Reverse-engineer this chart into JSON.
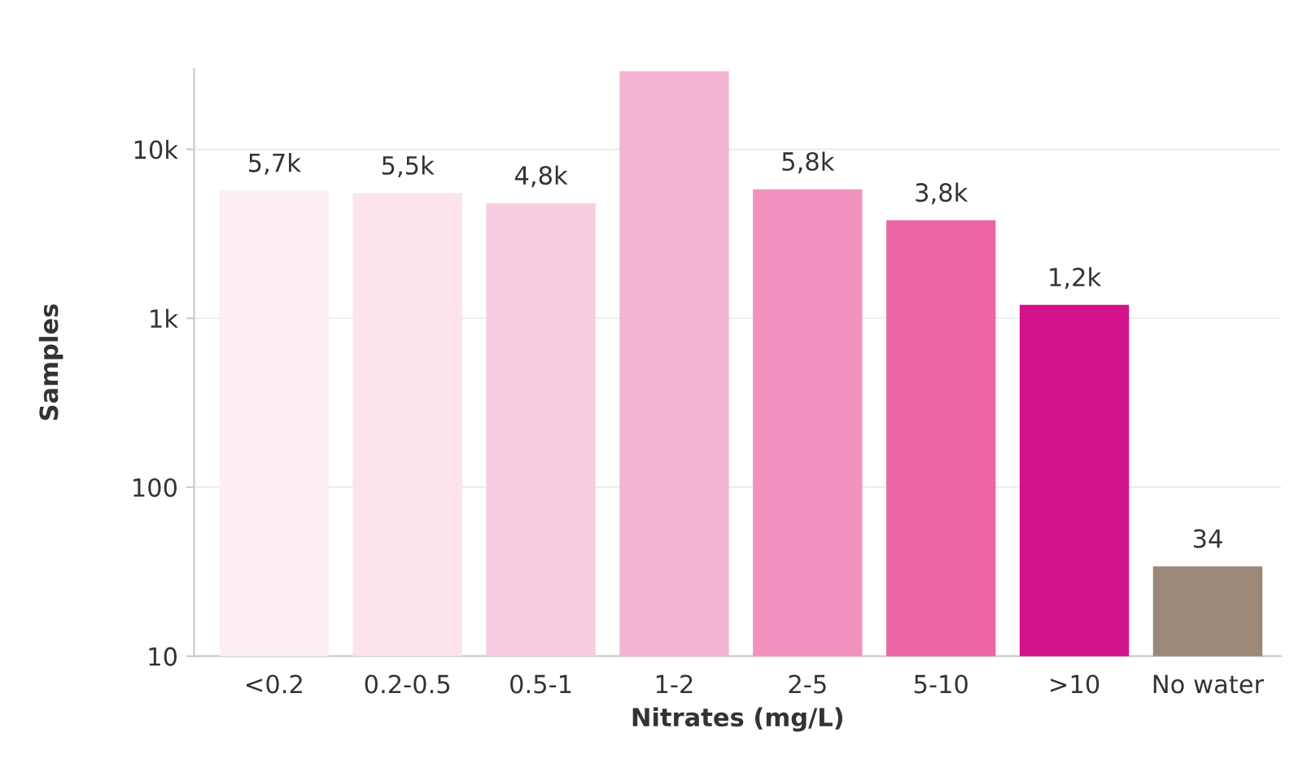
{
  "chart_data": {
    "type": "bar",
    "xlabel": "Nitrates (mg/L)",
    "ylabel": "Samples",
    "categories": [
      "<0.2",
      "0.2-0.5",
      "0.5-1",
      "1-2",
      "2-5",
      "5-10",
      ">10",
      "No water"
    ],
    "values": [
      5700,
      5500,
      4800,
      29000,
      5800,
      3800,
      1200,
      34
    ],
    "value_labels": [
      "5,7k",
      "5,5k",
      "4,8k",
      null,
      "5,8k",
      "3,8k",
      "1,2k",
      "34"
    ],
    "colors": [
      "#fdeef4",
      "#fce3ee",
      "#f9cde1",
      "#f4b4d2",
      "#f192bf",
      "#ec66a6",
      "#d3138b",
      "#9c8878"
    ],
    "log": true,
    "ylim": [
      10,
      30000
    ],
    "yticks": [
      {
        "value": 10,
        "label": "10"
      },
      {
        "value": 100,
        "label": "100"
      },
      {
        "value": 1000,
        "label": "1k"
      },
      {
        "value": 10000,
        "label": "10k"
      }
    ],
    "grid": "y"
  }
}
